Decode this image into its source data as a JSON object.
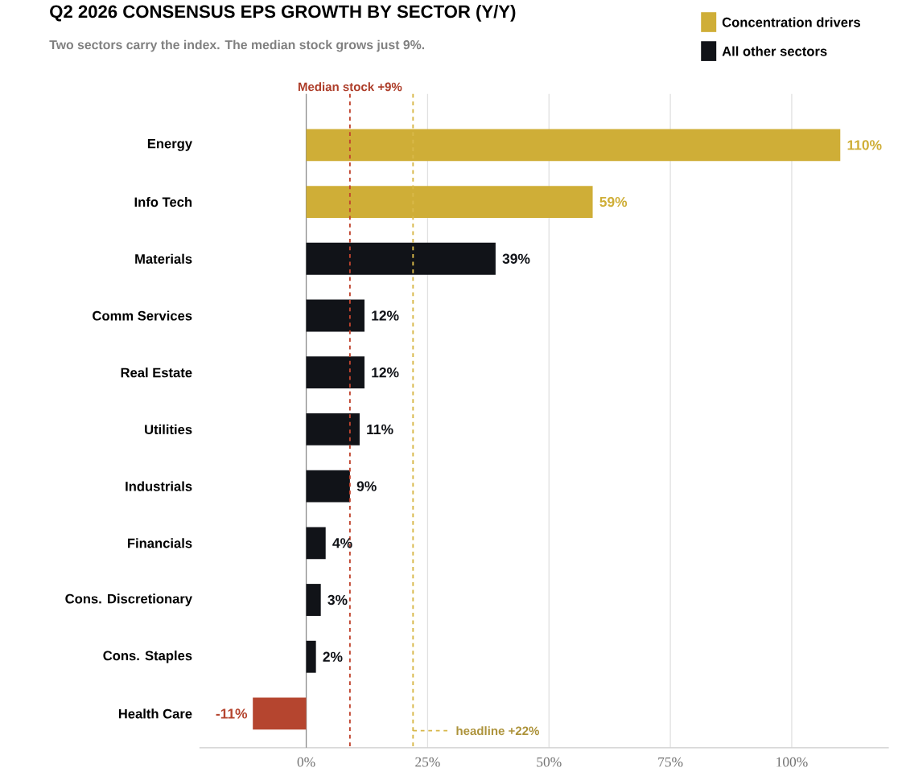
{
  "chart_data": {
    "type": "bar",
    "orientation": "horizontal",
    "title": "Q2 2026 CONSENSUS EPS GROWTH BY SECTOR (Y/Y)",
    "subtitle": "Two sectors carry the index. The median stock grows just 9%.",
    "categories": [
      "Energy",
      "Info Tech",
      "Materials",
      "Comm Services",
      "Real Estate",
      "Utilities",
      "Industrials",
      "Financials",
      "Cons. Discretionary",
      "Cons. Staples",
      "Health Care"
    ],
    "series": [
      {
        "name": "Concentration drivers",
        "color": "#cfae37",
        "values": [
          110,
          59,
          null,
          null,
          null,
          null,
          null,
          null,
          null,
          null,
          null
        ],
        "value_labels": [
          "110%",
          "59%",
          null,
          null,
          null,
          null,
          null,
          null,
          null,
          null,
          null
        ]
      },
      {
        "name": "All other sectors",
        "color": "#111318",
        "colors": [
          null,
          null,
          "#111318",
          "#111318",
          "#111318",
          "#111318",
          "#111318",
          "#111318",
          "#111318",
          "#111318",
          "#b5452f"
        ],
        "values": [
          null,
          null,
          39,
          12,
          12,
          11,
          9,
          4,
          3,
          2,
          -11
        ],
        "value_labels": [
          null,
          null,
          "39%",
          "12%",
          "12%",
          "11%",
          "9%",
          "4%",
          "3%",
          "2%",
          "-11%"
        ]
      }
    ],
    "xlim": [
      -22,
      120
    ],
    "xticks": [
      {
        "value": 0,
        "label": "0%"
      },
      {
        "value": 25,
        "label": "25%"
      },
      {
        "value": 50,
        "label": "50%"
      },
      {
        "value": 75,
        "label": "75%"
      },
      {
        "value": 100,
        "label": "100%"
      }
    ],
    "grid": "x",
    "legend": "top right",
    "ref_lines": [
      {
        "axis": "x",
        "value": 9,
        "label": "Median stock +9%",
        "color": "#c0442e",
        "line_style": "dashed"
      },
      {
        "axis": "x",
        "value": 22,
        "label": "headline +22%",
        "color": "#d8b84a",
        "line_style": "dashed"
      }
    ]
  }
}
